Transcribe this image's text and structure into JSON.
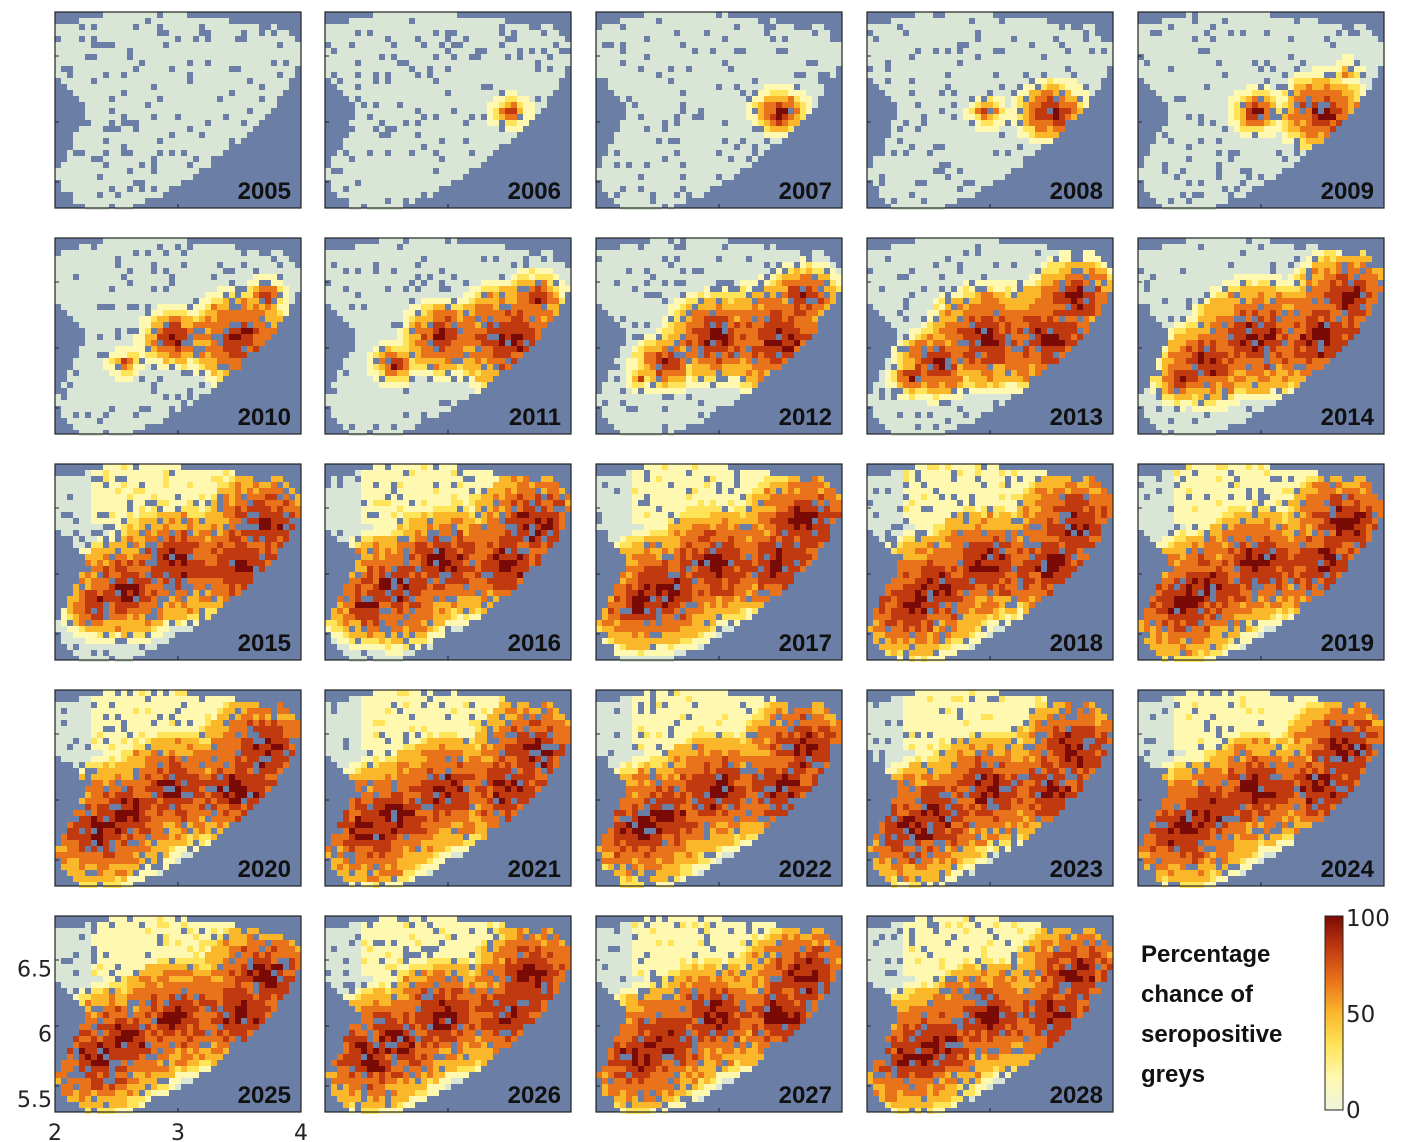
{
  "chart_data": {
    "type": "heatmap",
    "layout": "small-multiples",
    "panels": [
      {
        "year": "2005",
        "extent_level": 0
      },
      {
        "year": "2006",
        "extent_level": 1
      },
      {
        "year": "2007",
        "extent_level": 2
      },
      {
        "year": "2008",
        "extent_level": 3
      },
      {
        "year": "2009",
        "extent_level": 4
      },
      {
        "year": "2010",
        "extent_level": 5
      },
      {
        "year": "2011",
        "extent_level": 6
      },
      {
        "year": "2012",
        "extent_level": 7
      },
      {
        "year": "2013",
        "extent_level": 8
      },
      {
        "year": "2014",
        "extent_level": 9
      },
      {
        "year": "2015",
        "extent_level": 10
      },
      {
        "year": "2016",
        "extent_level": 11
      },
      {
        "year": "2017",
        "extent_level": 12
      },
      {
        "year": "2018",
        "extent_level": 13
      },
      {
        "year": "2019",
        "extent_level": 14
      },
      {
        "year": "2020",
        "extent_level": 15
      },
      {
        "year": "2021",
        "extent_level": 16
      },
      {
        "year": "2022",
        "extent_level": 17
      },
      {
        "year": "2023",
        "extent_level": 18
      },
      {
        "year": "2024",
        "extent_level": 19
      },
      {
        "year": "2025",
        "extent_level": 20
      },
      {
        "year": "2026",
        "extent_level": 21
      },
      {
        "year": "2027",
        "extent_level": 22
      },
      {
        "year": "2028",
        "extent_level": 23
      }
    ],
    "x_ticks": [
      "2",
      "3",
      "4"
    ],
    "xlim": [
      2,
      4
    ],
    "y_ticks": [
      "6.5",
      "6",
      "5.5"
    ],
    "ylim": [
      5.4,
      6.9
    ],
    "colorbar": {
      "label_lines": [
        "Percentage",
        "chance of",
        "seropositive",
        "greys"
      ],
      "ticks": [
        "100",
        "50",
        "0"
      ],
      "range": [
        0,
        100
      ],
      "colors": [
        "#eef3dc",
        "#fff8b0",
        "#ffe45a",
        "#fbb72a",
        "#e8731a",
        "#c13a0f",
        "#7a0a05"
      ]
    },
    "background_color": "#6b7fa6",
    "land_color": "#d9e6d6"
  }
}
